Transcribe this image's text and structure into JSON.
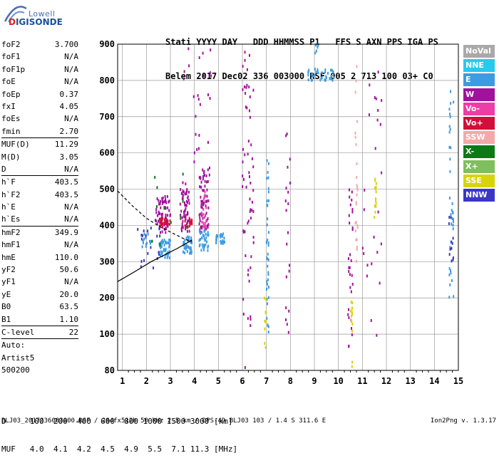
{
  "logo": {
    "line1": "Lowell",
    "line2_a": "D",
    "line2_b": "IGISONDE"
  },
  "header": {
    "line1": "Stati YYYY DAY   DDD HHMMSS P1   FFS S AXN PPS IGA PS",
    "line2": "Belem 2017 Dec02 336 003000 RSF 005 2 713 100 03+ C0"
  },
  "params": [
    [
      {
        "k": "foF2",
        "v": "3.700"
      },
      {
        "k": "foF1",
        "v": "N/A"
      },
      {
        "k": "foF1p",
        "v": "N/A"
      },
      {
        "k": "foE",
        "v": "N/A"
      },
      {
        "k": "foEp",
        "v": "0.37"
      },
      {
        "k": "fxI",
        "v": "4.05"
      },
      {
        "k": "foEs",
        "v": "N/A"
      },
      {
        "k": "fmin",
        "v": "2.70"
      }
    ],
    [
      {
        "k": "MUF(D)",
        "v": "11.29"
      },
      {
        "k": "M(D)",
        "v": "3.05"
      },
      {
        "k": "D",
        "v": "N/A"
      }
    ],
    [
      {
        "k": "h`F",
        "v": "403.5"
      },
      {
        "k": "h`F2",
        "v": "403.5"
      },
      {
        "k": "h`E",
        "v": "N/A"
      },
      {
        "k": "h`Es",
        "v": "N/A"
      }
    ],
    [
      {
        "k": "hmF2",
        "v": "349.9"
      },
      {
        "k": "hmF1",
        "v": "N/A"
      },
      {
        "k": "hmE",
        "v": "110.0"
      },
      {
        "k": "yF2",
        "v": "50.6"
      },
      {
        "k": "yF1",
        "v": "N/A"
      },
      {
        "k": "yE",
        "v": "20.0"
      },
      {
        "k": "B0",
        "v": "63.5"
      },
      {
        "k": "B1",
        "v": "1.10"
      }
    ],
    [
      {
        "k": "C-level",
        "v": "22"
      }
    ],
    [
      {
        "k": "Auto:",
        "v": ""
      },
      {
        "k": "Artist5",
        "v": ""
      },
      {
        "k": "500200",
        "v": ""
      }
    ]
  ],
  "legend": [
    {
      "label": "NoVal",
      "color": "#a9a9a9"
    },
    {
      "label": "NNE",
      "color": "#27c9ee"
    },
    {
      "label": "E",
      "color": "#3d9be2"
    },
    {
      "label": "W",
      "color": "#a1119c"
    },
    {
      "label": "Vo-",
      "color": "#ec3ea7"
    },
    {
      "label": "Vo+",
      "color": "#d20f3a"
    },
    {
      "label": "SSW",
      "color": "#f3a9a9"
    },
    {
      "label": "X-",
      "color": "#0a7a17"
    },
    {
      "label": "X+",
      "color": "#7fbf5c"
    },
    {
      "label": "SSE",
      "color": "#d8d40c"
    },
    {
      "label": "NNW",
      "color": "#3a37c4"
    }
  ],
  "dmuf": {
    "d_line": "D     100  200  400  600  800 1000 1500 3000 [km]",
    "muf_line": "MUF   4.0  4.1  4.2  4.5  4.9  5.5  7.1 11.3 [MHz]"
  },
  "footer": "BLJ03_2017336003000.RSF / 284fx512h 50 kHz 2.5 km / DPS-4D BLJ03 103 / 1.4 S 311.6 E",
  "version": "Ion2Png v. 1.3.17",
  "chart_data": {
    "type": "scatter",
    "x_ticks": [
      "1",
      "2",
      "3",
      "4",
      "5",
      "6",
      "7",
      "8",
      "9",
      "10",
      "11",
      "12",
      "13",
      "14",
      "15"
    ],
    "y_ticks": [
      "80",
      "100",
      "200",
      "300",
      "400",
      "500",
      "600",
      "700",
      "800",
      "900"
    ],
    "xlim": [
      0.8,
      15.0
    ],
    "ylim": [
      80,
      900
    ],
    "grid": true,
    "legend_position": "right",
    "profile_curve": {
      "x": [
        0.8,
        1.5,
        2.2,
        2.8,
        3.3,
        3.7,
        3.9
      ],
      "y": [
        245,
        272,
        300,
        320,
        337,
        352,
        360
      ]
    },
    "trace_curve": {
      "x": [
        0.8,
        1.4,
        2.0,
        2.6,
        3.2,
        3.6,
        3.9
      ],
      "y": [
        495,
        455,
        420,
        395,
        375,
        362,
        355
      ]
    },
    "echo_groups": [
      {
        "color": "#a1119c",
        "x": [
          2.4,
          3.0
        ],
        "y": [
          380,
          480
        ],
        "n": 70
      },
      {
        "color": "#d20f3a",
        "x": [
          2.5,
          3.0
        ],
        "y": [
          395,
          420
        ],
        "n": 25
      },
      {
        "color": "#a1119c",
        "x": [
          3.4,
          3.8
        ],
        "y": [
          380,
          500
        ],
        "n": 60
      },
      {
        "color": "#d20f3a",
        "x": [
          3.6,
          3.9
        ],
        "y": [
          395,
          420
        ],
        "n": 18
      },
      {
        "color": "#a1119c",
        "x": [
          4.2,
          4.6
        ],
        "y": [
          380,
          560
        ],
        "n": 60
      },
      {
        "color": "#ec3ea7",
        "x": [
          4.3,
          4.5
        ],
        "y": [
          395,
          500
        ],
        "n": 20
      },
      {
        "color": "#3d9be2",
        "x": [
          2.5,
          3.0
        ],
        "y": [
          310,
          360
        ],
        "n": 45
      },
      {
        "color": "#3d9be2",
        "x": [
          3.5,
          3.9
        ],
        "y": [
          320,
          370
        ],
        "n": 40
      },
      {
        "color": "#3d9be2",
        "x": [
          4.2,
          4.6
        ],
        "y": [
          330,
          390
        ],
        "n": 35
      },
      {
        "color": "#3d9be2",
        "x": [
          4.9,
          5.3
        ],
        "y": [
          350,
          380
        ],
        "n": 25
      },
      {
        "color": "#3d9be2",
        "x": [
          1.8,
          2.2
        ],
        "y": [
          340,
          380
        ],
        "n": 15
      },
      {
        "color": "#3a37c4",
        "x": [
          1.6,
          2.6
        ],
        "y": [
          280,
          420
        ],
        "n": 20
      },
      {
        "color": "#0a7a17",
        "x": [
          2.2,
          4.2
        ],
        "y": [
          330,
          560
        ],
        "n": 12
      },
      {
        "color": "#a1119c",
        "x": [
          3.5,
          4.7
        ],
        "y": [
          500,
          900
        ],
        "n": 30
      },
      {
        "color": "#a1119c",
        "x": [
          6.0,
          6.5
        ],
        "y": [
          80,
          900
        ],
        "n": 60
      },
      {
        "color": "#3d9be2",
        "x": [
          7.0,
          7.1
        ],
        "y": [
          80,
          600
        ],
        "n": 40
      },
      {
        "color": "#a1119c",
        "x": [
          7.8,
          8.0
        ],
        "y": [
          100,
          700
        ],
        "n": 20
      },
      {
        "color": "#3d9be2",
        "x": [
          8.7,
          9.9
        ],
        "y": [
          800,
          830
        ],
        "n": 35
      },
      {
        "color": "#a1119c",
        "x": [
          10.4,
          10.6
        ],
        "y": [
          80,
          500
        ],
        "n": 30
      },
      {
        "color": "#f3a9a9",
        "x": [
          10.7,
          10.8
        ],
        "y": [
          300,
          860
        ],
        "n": 25
      },
      {
        "color": "#d8d40c",
        "x": [
          10.5,
          10.6
        ],
        "y": [
          80,
          200
        ],
        "n": 15
      },
      {
        "color": "#a1119c",
        "x": [
          11.0,
          11.8
        ],
        "y": [
          80,
          900
        ],
        "n": 25
      },
      {
        "color": "#d8d40c",
        "x": [
          11.5,
          11.6
        ],
        "y": [
          420,
          540
        ],
        "n": 15
      },
      {
        "color": "#3d9be2",
        "x": [
          14.6,
          14.8
        ],
        "y": [
          200,
          820
        ],
        "n": 35
      },
      {
        "color": "#3a37c4",
        "x": [
          14.6,
          14.8
        ],
        "y": [
          300,
          440
        ],
        "n": 12
      },
      {
        "color": "#3d9be2",
        "x": [
          9.0,
          9.2
        ],
        "y": [
          820,
          900
        ],
        "n": 10
      },
      {
        "color": "#d8d40c",
        "x": [
          6.9,
          7.0
        ],
        "y": [
          80,
          200
        ],
        "n": 10
      }
    ]
  }
}
